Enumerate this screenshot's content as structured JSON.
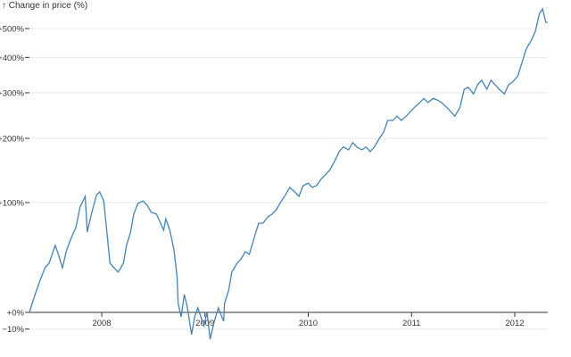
{
  "chart_data": {
    "type": "line",
    "title": "",
    "ylabel": "↑ Change in price (%)",
    "xlabel": "",
    "y_scale": "log (1 + change)",
    "xlim": [
      2007.3,
      2012.32
    ],
    "ylim": [
      -16,
      580
    ],
    "grid": "horizontal",
    "line_color": "#4682b4",
    "x_ticks": [
      {
        "value": 2008,
        "label": "2008"
      },
      {
        "value": 2009,
        "label": "2009"
      },
      {
        "value": 2010,
        "label": "2010"
      },
      {
        "value": 2011,
        "label": "2011"
      },
      {
        "value": 2012,
        "label": "2012"
      }
    ],
    "y_ticks": [
      {
        "value": -10,
        "label": "−10%"
      },
      {
        "value": 0,
        "label": "+0%"
      },
      {
        "value": 100,
        "label": "+100%"
      },
      {
        "value": 200,
        "label": "+200%"
      },
      {
        "value": 300,
        "label": "+300%"
      },
      {
        "value": 400,
        "label": "+400%"
      },
      {
        "value": 500,
        "label": "+500%"
      }
    ],
    "x": [
      2007.3,
      2007.34,
      2007.4,
      2007.45,
      2007.49,
      2007.55,
      2007.58,
      2007.62,
      2007.66,
      2007.71,
      2007.75,
      2007.79,
      2007.84,
      2007.86,
      2007.9,
      2007.95,
      2007.98,
      2008.02,
      2008.05,
      2008.08,
      2008.12,
      2008.16,
      2008.21,
      2008.24,
      2008.28,
      2008.31,
      2008.35,
      2008.4,
      2008.44,
      2008.48,
      2008.53,
      2008.57,
      2008.6,
      2008.62,
      2008.66,
      2008.7,
      2008.73,
      2008.74,
      2008.77,
      2008.8,
      2008.83,
      2008.87,
      2008.9,
      2008.93,
      2008.99,
      2009.02,
      2009.05,
      2009.09,
      2009.13,
      2009.18,
      2009.19,
      2009.23,
      2009.26,
      2009.31,
      2009.35,
      2009.39,
      2009.43,
      2009.48,
      2009.52,
      2009.56,
      2009.61,
      2009.65,
      2009.69,
      2009.74,
      2009.78,
      2009.82,
      2009.87,
      2009.91,
      2009.95,
      2010.0,
      2010.04,
      2010.08,
      2010.13,
      2010.17,
      2010.21,
      2010.26,
      2010.3,
      2010.34,
      2010.39,
      2010.43,
      2010.47,
      2010.52,
      2010.56,
      2010.6,
      2010.64,
      2010.69,
      2010.73,
      2010.77,
      2010.82,
      2010.86,
      2010.9,
      2010.95,
      2010.99,
      2011.03,
      2011.08,
      2011.12,
      2011.16,
      2011.21,
      2011.25,
      2011.29,
      2011.34,
      2011.38,
      2011.42,
      2011.47,
      2011.51,
      2011.55,
      2011.6,
      2011.64,
      2011.68,
      2011.73,
      2011.77,
      2011.81,
      2011.85,
      2011.9,
      2011.94,
      2011.98,
      2012.03,
      2012.07,
      2012.11,
      2012.16,
      2012.2,
      2012.24,
      2012.27,
      2012.3,
      2012.32
    ],
    "values": [
      0,
      8.8,
      21.8,
      32.5,
      36.3,
      52.6,
      44.2,
      32.5,
      48.3,
      61.4,
      70.8,
      94.4,
      108,
      66,
      85.9,
      110,
      114,
      102,
      66,
      36.3,
      32.5,
      28.9,
      36.3,
      52.6,
      66,
      85.9,
      98.8,
      102,
      96.6,
      87.9,
      85.9,
      75.6,
      67.9,
      80.7,
      67.9,
      48.3,
      25.3,
      5.8,
      -2.8,
      11.9,
      2.9,
      -13.1,
      -2.8,
      2.9,
      -8.1,
      0,
      -15.6,
      -5.5,
      2.9,
      -5.5,
      5.8,
      15.1,
      28.9,
      36.3,
      40.2,
      46.7,
      44.2,
      61.4,
      75.6,
      75.6,
      82.8,
      85.9,
      91.2,
      102,
      110,
      120,
      114,
      108,
      122.5,
      126,
      120,
      122.5,
      133,
      139,
      146,
      161,
      176,
      184,
      179,
      192,
      184,
      179,
      184,
      176,
      184,
      200,
      212,
      236,
      236,
      245,
      236,
      245,
      255,
      265,
      276,
      286,
      276,
      286,
      282,
      276,
      265,
      255,
      245,
      265,
      309,
      314,
      297,
      321,
      333,
      309,
      333,
      321,
      309,
      297,
      321,
      328,
      345,
      384,
      427,
      457,
      490,
      560,
      579,
      524,
      524
    ]
  }
}
